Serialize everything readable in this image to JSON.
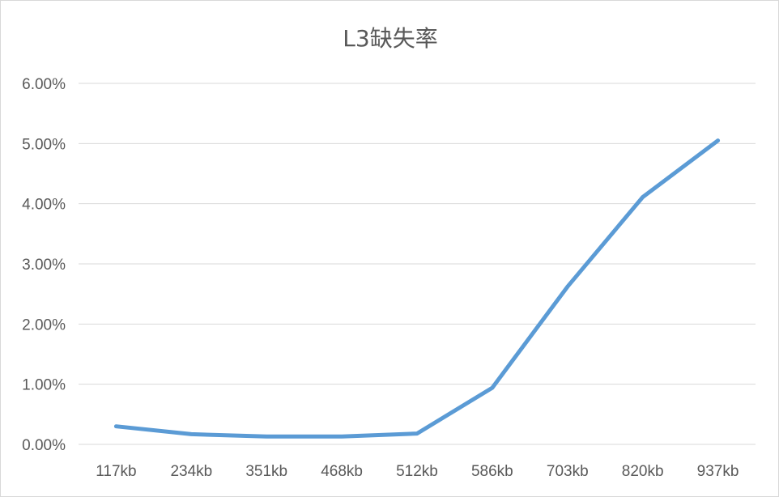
{
  "chart_data": {
    "type": "line",
    "title": "L3缺失率",
    "xlabel": "",
    "ylabel": "",
    "categories": [
      "117kb",
      "234kb",
      "351kb",
      "468kb",
      "512kb",
      "586kb",
      "703kb",
      "820kb",
      "937kb"
    ],
    "series": [
      {
        "values": [
          0.003,
          0.0017,
          0.0013,
          0.0013,
          0.0018,
          0.0094,
          0.0262,
          0.0411,
          0.0505
        ]
      }
    ],
    "ylim": [
      0,
      0.06
    ],
    "yticks": [
      0,
      0.01,
      0.02,
      0.03,
      0.04,
      0.05,
      0.06
    ],
    "ytick_labels": [
      "0.00%",
      "1.00%",
      "2.00%",
      "3.00%",
      "4.00%",
      "5.00%",
      "6.00%"
    ],
    "grid": true,
    "legend": "none",
    "colors": {
      "line": "#5B9BD5",
      "grid": "#D9D9D9",
      "text": "#595959"
    }
  }
}
